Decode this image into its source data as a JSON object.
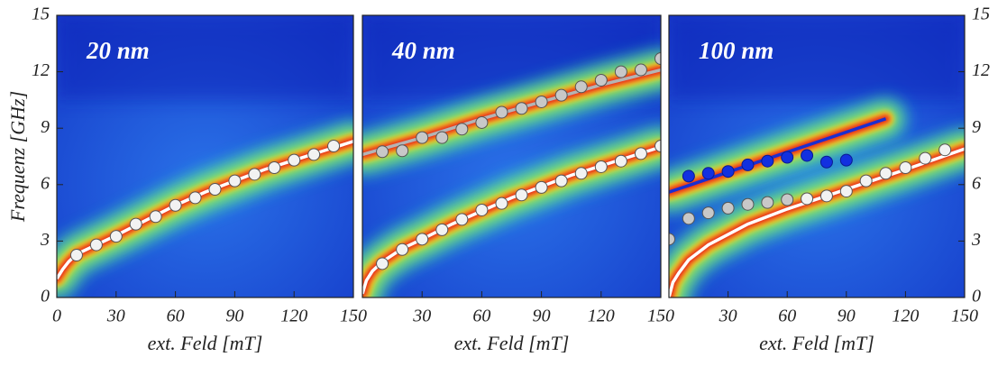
{
  "chart_data": [
    {
      "type": "scatter",
      "title": "20 nm",
      "xlabel": "ext. Feld [mT]",
      "ylabel": "Frequenz [GHz]",
      "xlim": [
        0,
        150
      ],
      "ylim": [
        0,
        15
      ],
      "xticks": [
        0,
        30,
        60,
        90,
        120,
        150
      ],
      "yticks": [
        0,
        3,
        6,
        9,
        12,
        15
      ],
      "yaxis_side": "left",
      "series": [
        {
          "mode": "line",
          "color": "#ffffff",
          "x": [
            0,
            3,
            6,
            10,
            20,
            30,
            45,
            60,
            75,
            90,
            105,
            120,
            135,
            150
          ],
          "values": [
            1.0,
            1.5,
            1.9,
            2.3,
            2.8,
            3.3,
            4.1,
            4.9,
            5.6,
            6.2,
            6.8,
            7.3,
            7.8,
            8.3
          ]
        },
        {
          "mode": "markers",
          "color": "#f2f2f2",
          "x": [
            10,
            20,
            30,
            40,
            50,
            60,
            70,
            80,
            90,
            100,
            110,
            120,
            130,
            140
          ],
          "values": [
            2.25,
            2.8,
            3.25,
            3.9,
            4.3,
            4.9,
            5.3,
            5.75,
            6.2,
            6.55,
            6.9,
            7.3,
            7.6,
            8.05
          ]
        }
      ]
    },
    {
      "type": "scatter",
      "title": "40 nm",
      "xlabel": "ext. Feld [mT]",
      "xlim": [
        0,
        150
      ],
      "ylim": [
        0,
        15
      ],
      "xticks": [
        30,
        60,
        90,
        120,
        150
      ],
      "series": [
        {
          "mode": "line",
          "color": "#b4b4b4",
          "x": [
            0,
            30,
            60,
            90,
            120,
            150
          ],
          "values": [
            7.6,
            8.5,
            9.5,
            10.4,
            11.3,
            12.1
          ]
        },
        {
          "mode": "line",
          "color": "#ffffff",
          "x": [
            0,
            2,
            5,
            10,
            20,
            30,
            45,
            60,
            75,
            90,
            105,
            120,
            135,
            150
          ],
          "values": [
            0.2,
            0.9,
            1.4,
            1.9,
            2.6,
            3.1,
            3.9,
            4.6,
            5.3,
            5.9,
            6.5,
            7.0,
            7.5,
            8.0
          ]
        },
        {
          "mode": "markers",
          "color": "#c8c8c8",
          "x": [
            10,
            20,
            30,
            40,
            50,
            60,
            70,
            80,
            90,
            100,
            110,
            120,
            130,
            140,
            150
          ],
          "values": [
            7.75,
            7.8,
            8.5,
            8.5,
            8.95,
            9.3,
            9.85,
            10.05,
            10.4,
            10.75,
            11.2,
            11.55,
            12.0,
            12.1,
            12.7
          ]
        },
        {
          "mode": "markers",
          "color": "#f2f2f2",
          "x": [
            10,
            20,
            30,
            40,
            50,
            60,
            70,
            80,
            90,
            100,
            110,
            120,
            130,
            140,
            150
          ],
          "values": [
            1.8,
            2.55,
            3.1,
            3.6,
            4.15,
            4.65,
            5.0,
            5.45,
            5.85,
            6.2,
            6.6,
            6.95,
            7.25,
            7.65,
            8.05
          ]
        }
      ]
    },
    {
      "type": "scatter",
      "title": "100 nm",
      "xlabel": "ext. Feld [mT]",
      "xlim": [
        0,
        150
      ],
      "ylim": [
        0,
        15
      ],
      "xticks": [
        30,
        60,
        90,
        120,
        150
      ],
      "yticks": [
        0,
        3,
        6,
        9,
        12,
        15
      ],
      "yaxis_side": "right",
      "series": [
        {
          "mode": "line",
          "color": "#1a2fd0",
          "x": [
            0,
            110
          ],
          "values": [
            5.6,
            9.5
          ]
        },
        {
          "mode": "line",
          "color": "#ffffff",
          "x": [
            0,
            2,
            5,
            10,
            20,
            40,
            60,
            80,
            100,
            120,
            150
          ],
          "values": [
            0.0,
            0.8,
            1.3,
            2.0,
            2.8,
            3.9,
            4.7,
            5.4,
            6.1,
            6.8,
            7.9
          ]
        },
        {
          "mode": "markers",
          "color": "#c8c8c8",
          "x": [
            0,
            10,
            20,
            30,
            40,
            50,
            60
          ],
          "values": [
            3.1,
            4.2,
            4.5,
            4.75,
            4.95,
            5.05,
            5.2
          ]
        },
        {
          "mode": "markers",
          "color": "#f2f2f2",
          "x": [
            70,
            80,
            90,
            100,
            110,
            120,
            130,
            140
          ],
          "values": [
            5.25,
            5.4,
            5.65,
            6.2,
            6.6,
            6.9,
            7.4,
            7.85
          ]
        },
        {
          "mode": "markers",
          "color": "#1230e0",
          "x": [
            10,
            20,
            30,
            40,
            50,
            60,
            70,
            80,
            90
          ],
          "values": [
            6.45,
            6.6,
            6.7,
            7.05,
            7.25,
            7.45,
            7.55,
            7.2,
            7.3
          ]
        }
      ]
    }
  ]
}
